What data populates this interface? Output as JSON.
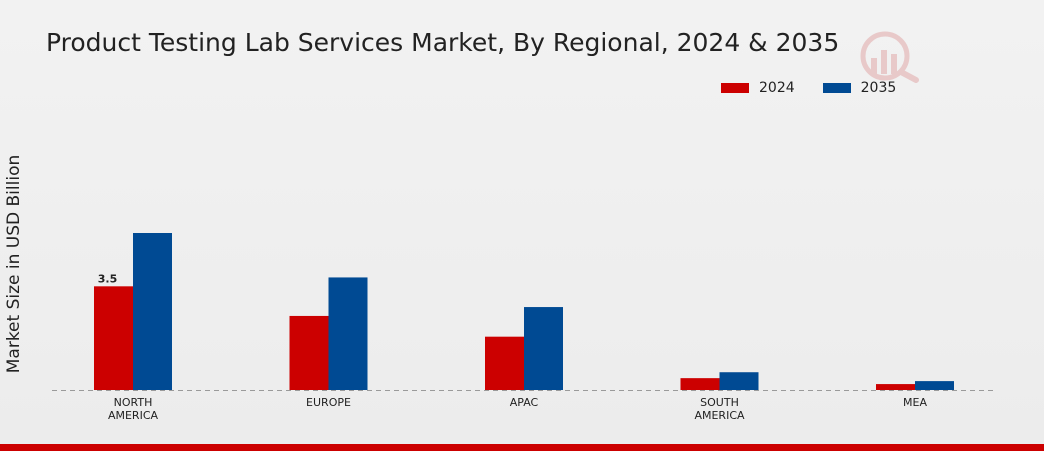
{
  "chart_data": {
    "type": "bar",
    "title": "Product Testing Lab Services Market, By Regional, 2024 & 2035",
    "xlabel": "",
    "ylabel": "Market Size in USD Billion",
    "categories": [
      [
        "NORTH",
        "AMERICA"
      ],
      [
        "EUROPE"
      ],
      [
        "APAC"
      ],
      [
        "SOUTH",
        "AMERICA"
      ],
      [
        "MEA"
      ]
    ],
    "series": [
      {
        "name": "2024",
        "color": "#cc0000",
        "values": [
          3.5,
          2.5,
          1.8,
          0.4,
          0.2
        ]
      },
      {
        "name": "2035",
        "color": "#004a93",
        "values": [
          5.3,
          3.8,
          2.8,
          0.6,
          0.3
        ]
      }
    ],
    "data_labels": [
      {
        "series": 0,
        "index": 0,
        "text": "3.5"
      }
    ],
    "ylim": [
      0,
      5.3
    ],
    "grid": false,
    "legend_position": "top-right"
  }
}
